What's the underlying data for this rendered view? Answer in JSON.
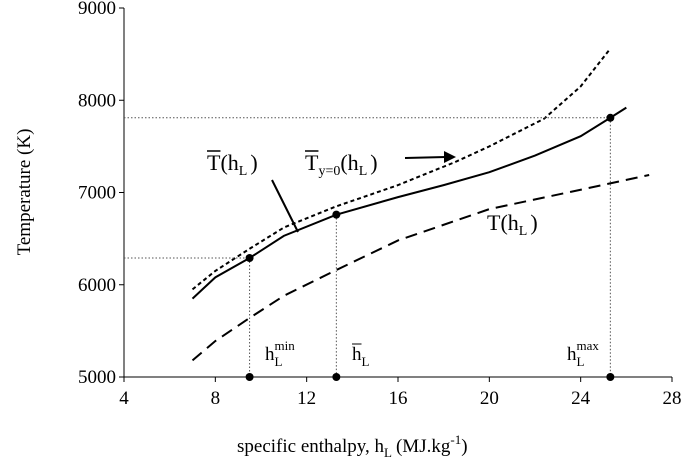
{
  "chart_data": {
    "type": "line",
    "x_label": {
      "text": "specific enthalpy, h",
      "sub": "L",
      "unit": "(MJ.kg",
      "sup": "-1",
      "close": ")"
    },
    "y_label": "Temperature (K)",
    "xlim": [
      4,
      28
    ],
    "xticks": [
      4,
      8,
      12,
      16,
      20,
      24,
      28
    ],
    "ylim": [
      5000,
      9000
    ],
    "yticks": [
      5000,
      6000,
      7000,
      8000,
      9000
    ],
    "series": [
      {
        "style": "solid",
        "color": "#000000",
        "x": [
          7,
          8,
          9.5,
          11,
          13.3,
          16,
          18,
          20,
          22,
          24,
          25.3,
          26
        ],
        "values": [
          5850,
          6080,
          6290,
          6530,
          6760,
          6950,
          7080,
          7220,
          7400,
          7610,
          7810,
          7920
        ]
      },
      {
        "style": "dotted",
        "color": "#000000",
        "x": [
          7,
          8,
          9.5,
          11,
          13.3,
          16,
          18.5,
          20,
          22.4,
          24,
          25.3
        ],
        "values": [
          5950,
          6150,
          6390,
          6620,
          6850,
          7080,
          7330,
          7500,
          7800,
          8150,
          8560
        ]
      },
      {
        "style": "dashed",
        "color": "#000000",
        "x": [
          7,
          8,
          9.5,
          11,
          13.3,
          16,
          20,
          24,
          27
        ],
        "values": [
          5180,
          5390,
          5640,
          5880,
          6160,
          6480,
          6820,
          7030,
          7190
        ]
      }
    ],
    "markers": {
      "x": [
        9.5,
        13.3,
        25.3
      ],
      "values": [
        6290,
        6760,
        7810
      ],
      "hline": [
        true,
        false,
        true
      ],
      "labels": [
        {
          "symbol": "h",
          "sub": "L",
          "sup": "min",
          "overline": false
        },
        {
          "symbol": "h",
          "sub": "L",
          "overline": true
        },
        {
          "symbol": "h",
          "sub": "L",
          "sup": "max",
          "overline": false
        }
      ]
    },
    "annotations": [
      {
        "symbol": "T",
        "overline": true,
        "open": "(h",
        "arg_sub": "L",
        "close": ")"
      },
      {
        "symbol": "T",
        "overline": true,
        "symbol_sub": "y=0",
        "open": "(h",
        "arg_sub": "L",
        "close": ")"
      },
      {
        "symbol": "T",
        "overline": false,
        "open": "(h",
        "arg_sub": "L",
        "close": ")"
      }
    ]
  }
}
